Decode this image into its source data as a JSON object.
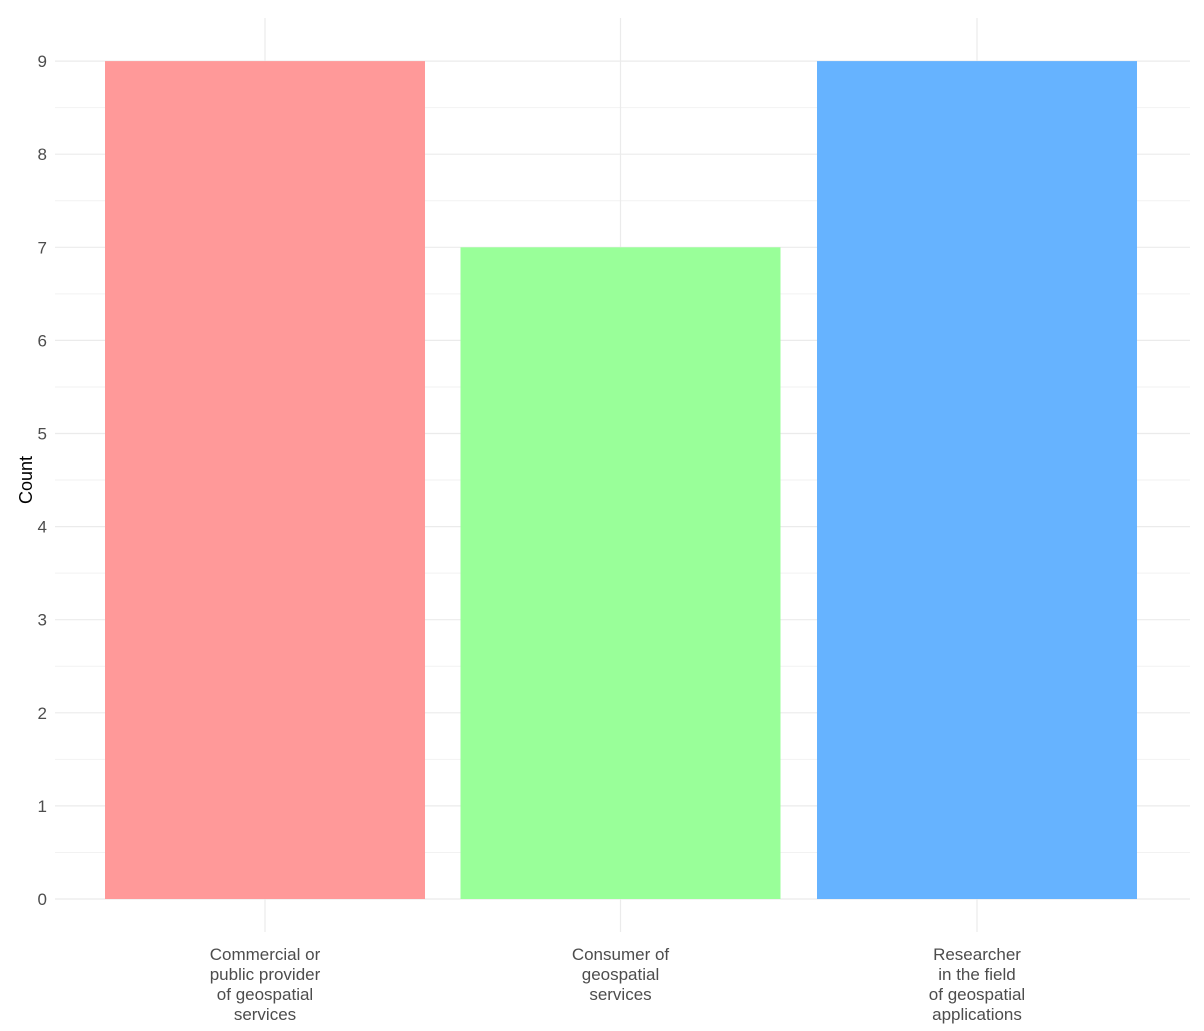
{
  "chart_data": {
    "type": "bar",
    "title": "",
    "xlabel": "",
    "ylabel": "Count",
    "categories": [
      [
        "Commercial or",
        "public provider",
        "of geospatial",
        "services"
      ],
      [
        "Consumer of",
        "geospatial",
        "services"
      ],
      [
        "Researcher",
        "in the field",
        "of geospatial",
        "applications"
      ]
    ],
    "values": [
      9,
      7,
      9
    ],
    "colors": [
      "#ff9999",
      "#99ff99",
      "#66b3ff"
    ],
    "ylim": [
      0,
      9
    ],
    "yticks": [
      0,
      1,
      2,
      3,
      4,
      5,
      6,
      7,
      8,
      9
    ],
    "grid": true,
    "legend": "none"
  }
}
